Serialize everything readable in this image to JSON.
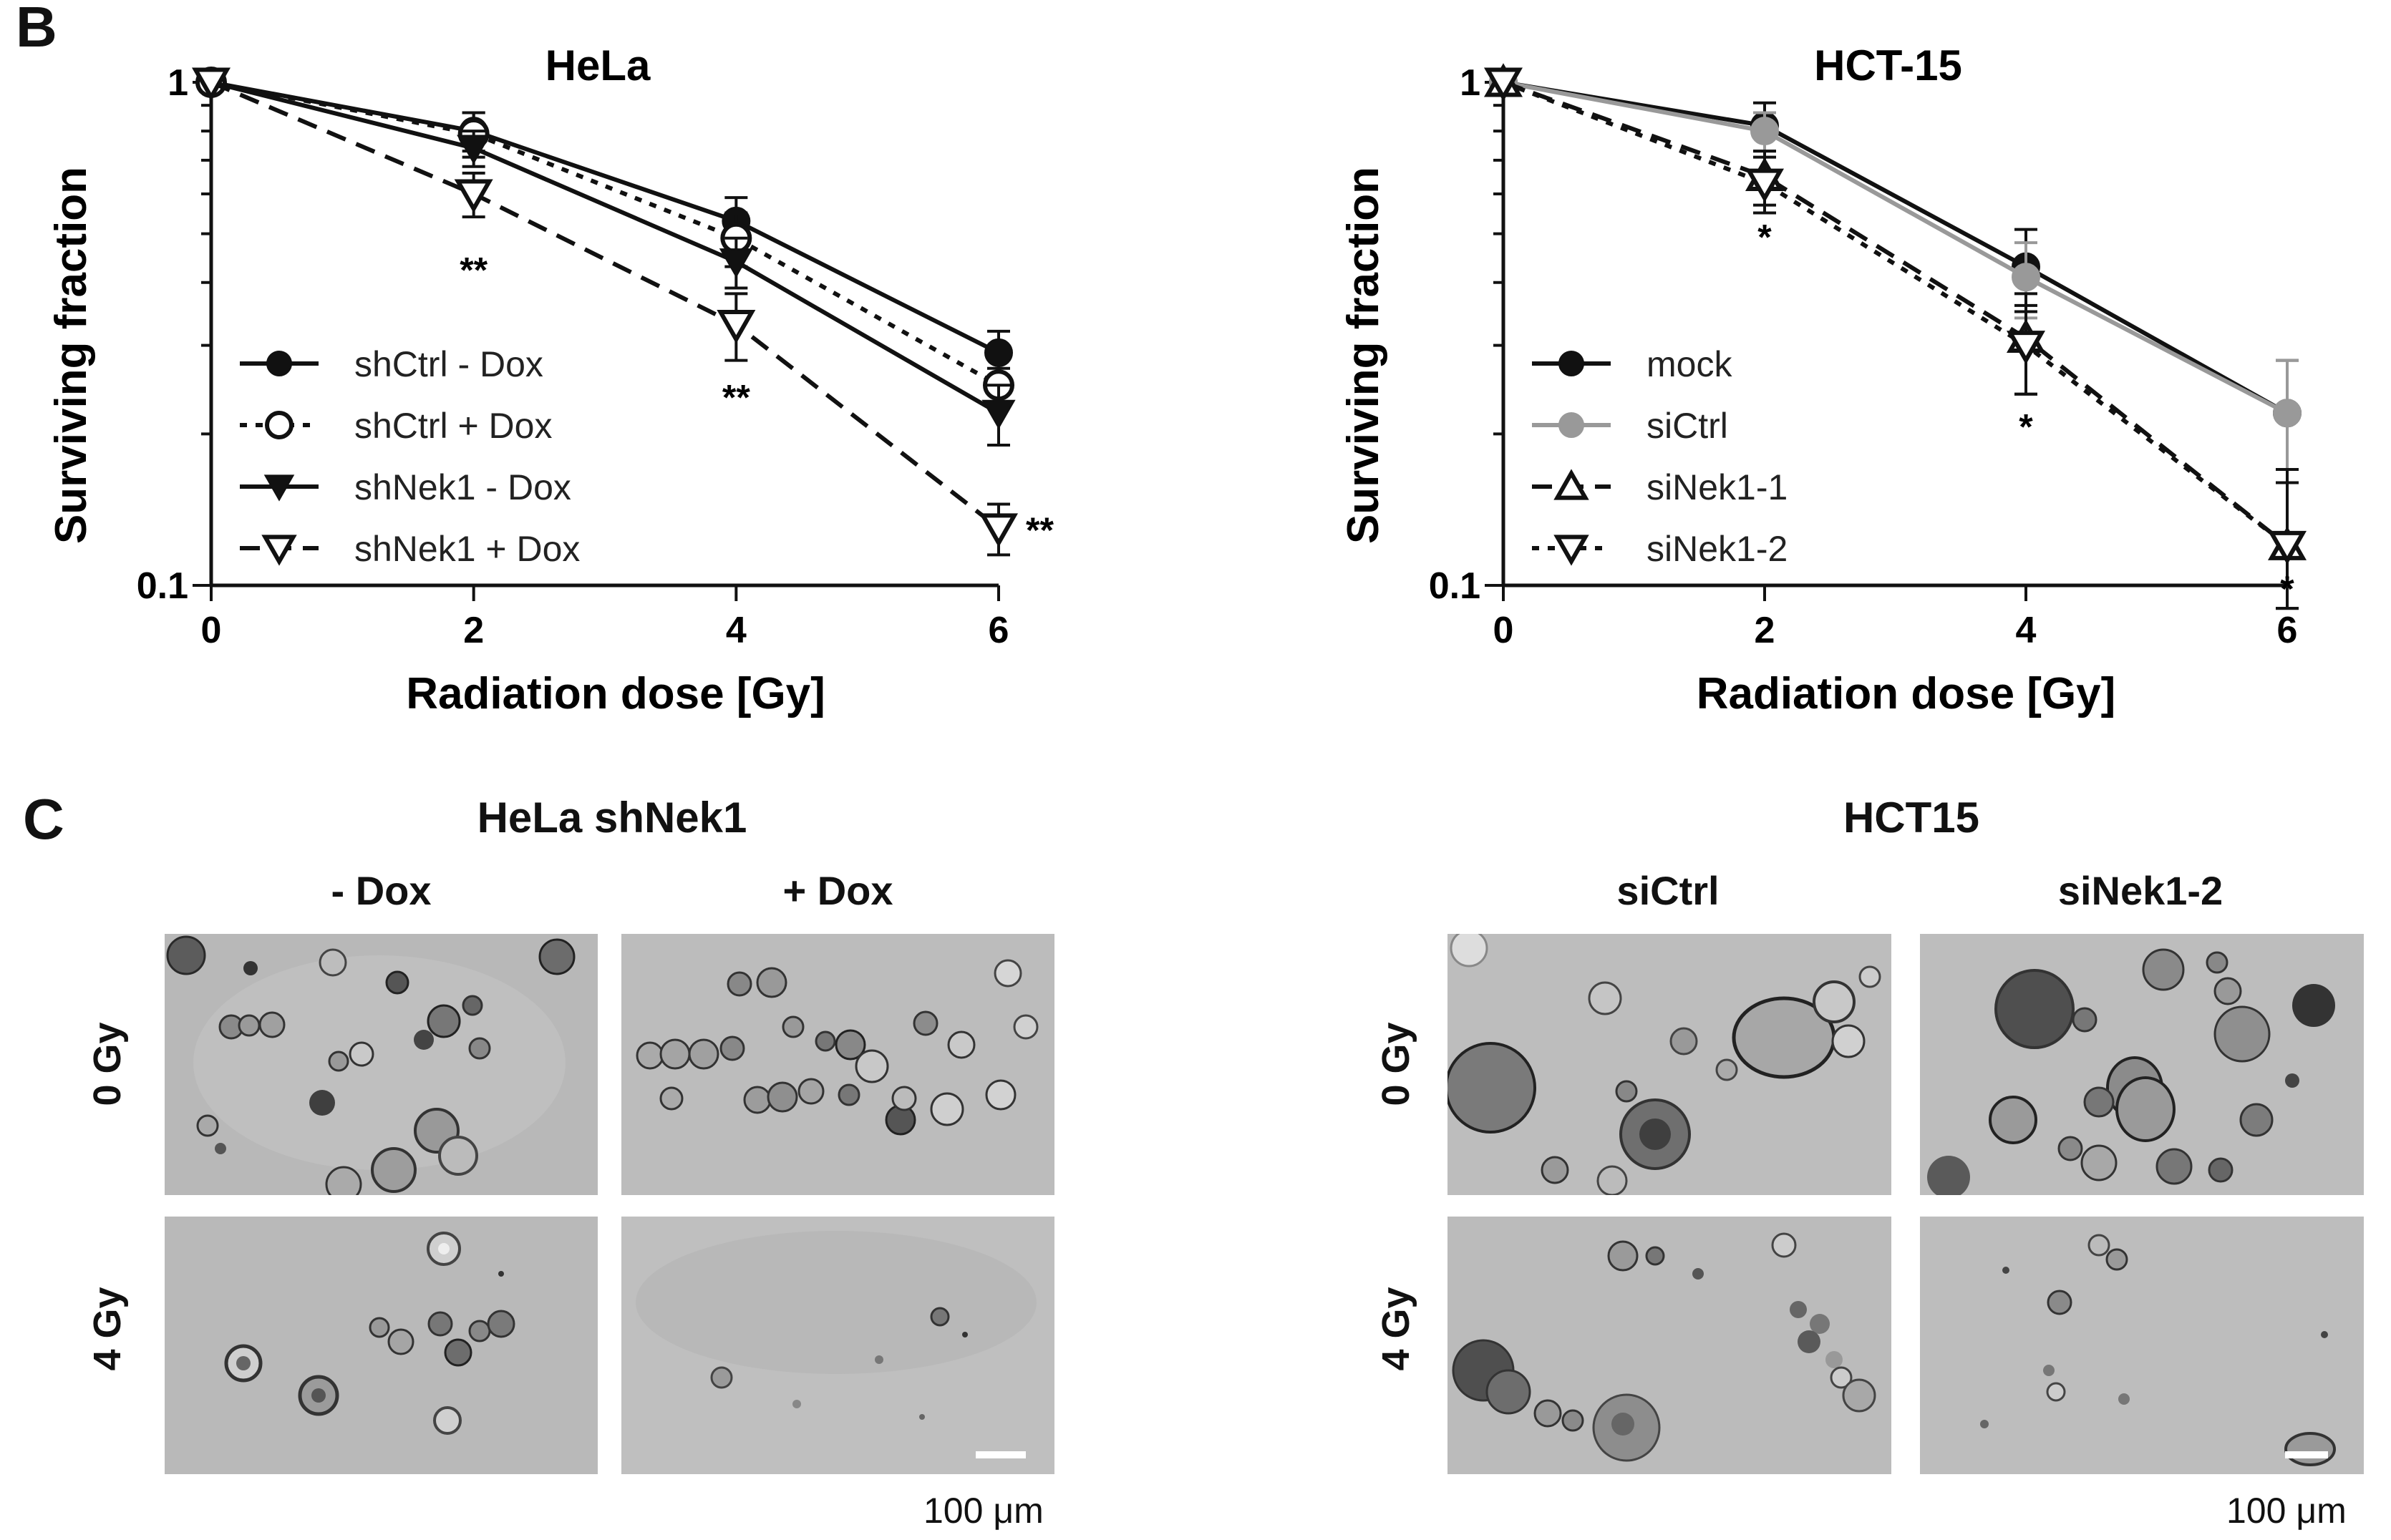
{
  "panels": {
    "b": {
      "letter": "B"
    },
    "c": {
      "letter": "C",
      "groups": [
        {
          "title": "HeLa shNek1",
          "columns": [
            "- Dox",
            "+ Dox"
          ],
          "rows": [
            "0 Gy",
            "4 Gy"
          ],
          "scale": "100 μm"
        },
        {
          "title": "HCT15",
          "columns": [
            "siCtrl",
            "siNek1-2"
          ],
          "rows": [
            "0 Gy",
            "4 Gy"
          ],
          "scale": "100 μm"
        }
      ]
    }
  },
  "chart_data": [
    {
      "type": "line",
      "title": "HeLa",
      "xlabel": "Radiation dose [Gy]",
      "ylabel": "Surviving fraction",
      "yscale": "log",
      "xlim": [
        0,
        6
      ],
      "ylim": [
        0.1,
        1
      ],
      "x": [
        0,
        2,
        4,
        6
      ],
      "x_tick_labels": [
        "0",
        "2",
        "4",
        "6"
      ],
      "y_tick_labels": [
        "1",
        "0.1"
      ],
      "legend_position": "bottom-left",
      "series": [
        {
          "name": "shCtrl - Dox",
          "marker": "circle-filled",
          "line": "solid",
          "color": "#111111",
          "values": [
            1,
            0.8,
            0.53,
            0.29
          ],
          "errors": [
            0,
            0.07,
            0.06,
            0.03
          ]
        },
        {
          "name": "shCtrl + Dox",
          "marker": "circle-open",
          "line": "dotted",
          "color": "#111111",
          "values": [
            1,
            0.79,
            0.49,
            0.25
          ],
          "errors": [
            0,
            0.08,
            0.06,
            0.02
          ]
        },
        {
          "name": "shNek1 - Dox",
          "marker": "triangle-down-filled",
          "line": "solid",
          "color": "#111111",
          "values": [
            1,
            0.74,
            0.44,
            0.22
          ],
          "errors": [
            0,
            0.06,
            0.05,
            0.03
          ]
        },
        {
          "name": "shNek1 + Dox",
          "marker": "triangle-down-open",
          "line": "dashed",
          "color": "#111111",
          "values": [
            1,
            0.6,
            0.33,
            0.13
          ],
          "errors": [
            0,
            0.06,
            0.05,
            0.015
          ]
        }
      ],
      "annotations": [
        {
          "x": 2,
          "y": 0.43,
          "text": "**"
        },
        {
          "x": 4,
          "y": 0.24,
          "text": "**"
        },
        {
          "x": 6,
          "y": 0.13,
          "text": "**",
          "position": "right"
        }
      ]
    },
    {
      "type": "line",
      "title": "HCT-15",
      "xlabel": "Radiation dose [Gy]",
      "ylabel": "Surviving fraction",
      "yscale": "log",
      "xlim": [
        0,
        6
      ],
      "ylim": [
        0.1,
        1
      ],
      "x": [
        0,
        2,
        4,
        6
      ],
      "x_tick_labels": [
        "0",
        "2",
        "4",
        "6"
      ],
      "y_tick_labels": [
        "1",
        "0.1"
      ],
      "legend_position": "bottom-left",
      "series": [
        {
          "name": "mock",
          "marker": "circle-filled",
          "line": "solid",
          "color": "#111111",
          "values": [
            1,
            0.82,
            0.43,
            0.22
          ],
          "errors": [
            0,
            0.09,
            0.08,
            0.06
          ]
        },
        {
          "name": "siCtrl",
          "marker": "circle-filled",
          "line": "solid",
          "color": "#999999",
          "values": [
            1,
            0.8,
            0.41,
            0.22
          ],
          "errors": [
            0,
            0.07,
            0.07,
            0.06
          ]
        },
        {
          "name": "siNek1-1",
          "marker": "triangle-up-open",
          "line": "dashed",
          "color": "#111111",
          "values": [
            1,
            0.65,
            0.31,
            0.12
          ],
          "errors": [
            0,
            0.08,
            0.07,
            0.05
          ]
        },
        {
          "name": "siNek1-2",
          "marker": "triangle-down-open",
          "line": "dotted",
          "color": "#111111",
          "values": [
            1,
            0.63,
            0.3,
            0.12
          ],
          "errors": [
            0,
            0.08,
            0.06,
            0.04
          ]
        }
      ],
      "annotations": [
        {
          "x": 2,
          "y": 0.5,
          "text": "*"
        },
        {
          "x": 4,
          "y": 0.21,
          "text": "*"
        },
        {
          "x": 6,
          "y": 0.1,
          "text": "*"
        }
      ]
    }
  ]
}
